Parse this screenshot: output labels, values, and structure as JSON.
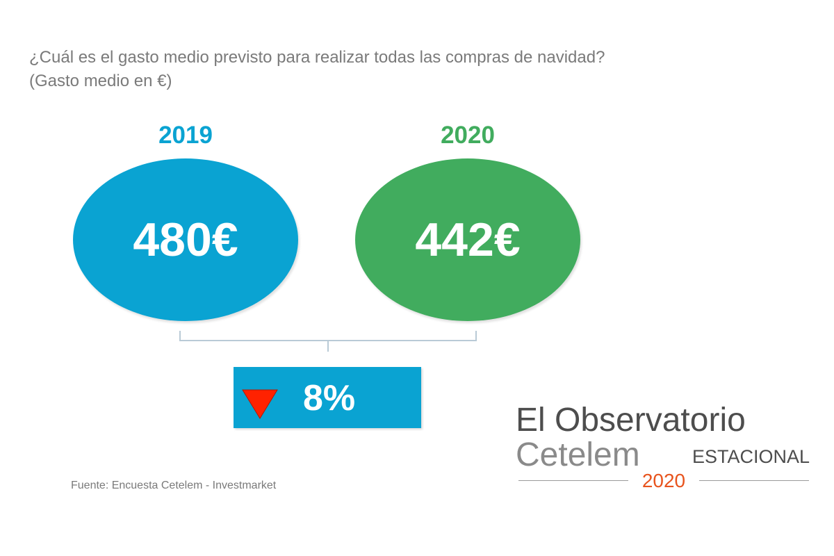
{
  "question": {
    "line1": "¿Cuál es el gasto medio previsto para realizar todas las compras de navidad?",
    "line2": "(Gasto medio en €)"
  },
  "chart_data": {
    "type": "bubble-comparison",
    "categories": [
      "2019",
      "2020"
    ],
    "values": [
      480,
      442
    ],
    "value_labels": [
      "480€",
      "442€"
    ],
    "colors": [
      "#0aa3d2",
      "#41ac5e"
    ],
    "change": {
      "label": "8%",
      "direction": "down",
      "indicator_color": "#ff2200",
      "box_color": "#0aa3d2"
    }
  },
  "source": "Fuente: Encuesta Cetelem - Investmarket",
  "logo": {
    "line1": "El Observatorio",
    "line2": "Cetelem",
    "line3": "ESTACIONAL",
    "year": "2020",
    "year_color": "#e8541e"
  }
}
